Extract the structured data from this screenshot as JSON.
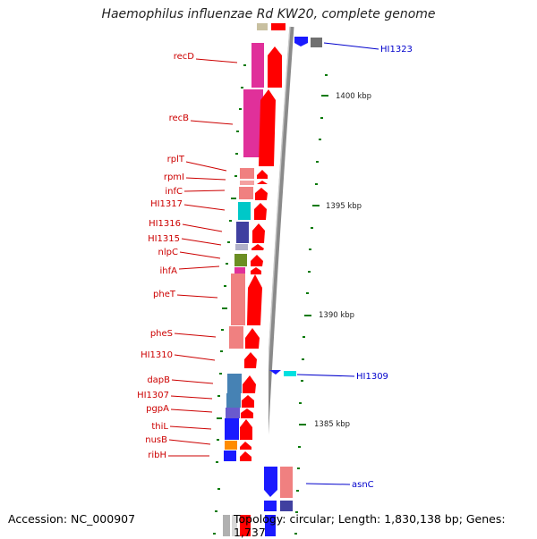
{
  "title": "Haemophilus influenzae Rd KW20, complete genome",
  "accession": "Accession: NC_000907",
  "summary": "Topology: circular; Length: 1,830,138 bp; Genes: 1,737",
  "colors": {
    "backbone": "#8a8a8a",
    "red_arrow": "#ff0000",
    "label_red": "#cc0000",
    "label_blue": "#0000cc",
    "tick_green": "#0a7a0a"
  },
  "ticks": [
    {
      "label": "1400 kbp"
    },
    {
      "label": "1395 kbp"
    },
    {
      "label": "1390 kbp"
    },
    {
      "label": "1385 kbp"
    }
  ],
  "left_labels": [
    "recD",
    "recB",
    "rplT",
    "rpmI",
    "infC",
    "HI1317",
    "HI1316",
    "HI1315",
    "nlpC",
    "ihfA",
    "pheT",
    "pheS",
    "HI1310",
    "dapB",
    "HI1307",
    "pgpA",
    "thiL",
    "nusB",
    "ribH"
  ],
  "right_labels": [
    "HI1323",
    "HI1309",
    "asnC"
  ]
}
